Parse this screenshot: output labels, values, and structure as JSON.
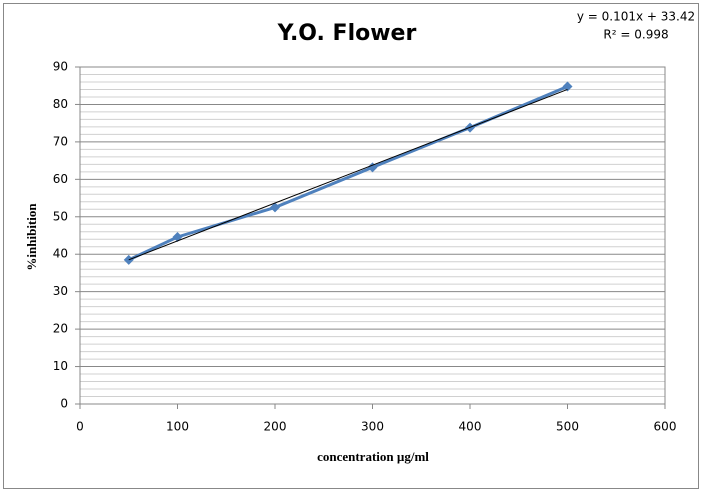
{
  "chart_data": {
    "type": "scatter",
    "title": "Y.O. Flower",
    "x_label": "concentration µg/ml",
    "y_label": "%inhibition",
    "annotations": [
      "y = 0.101x + 33.42",
      "R² = 0.998"
    ],
    "x": [
      50,
      100,
      200,
      300,
      400,
      500
    ],
    "series": [
      {
        "color": "#4f81bd",
        "values": [
          38.5,
          44.6,
          52.5,
          63.2,
          73.8,
          84.8
        ]
      }
    ],
    "trendline": {
      "color": "#000000",
      "x": [
        50,
        500
      ],
      "values": [
        38.5,
        84
      ]
    },
    "xlim": [
      0,
      600
    ],
    "xticks": [
      0,
      100,
      200,
      300,
      400,
      500,
      600
    ],
    "ylim": [
      0,
      90
    ],
    "yticks": [
      0,
      10,
      20,
      30,
      40,
      50,
      60,
      70,
      80,
      90
    ],
    "grid": true,
    "minor_ydivisions": 5
  }
}
